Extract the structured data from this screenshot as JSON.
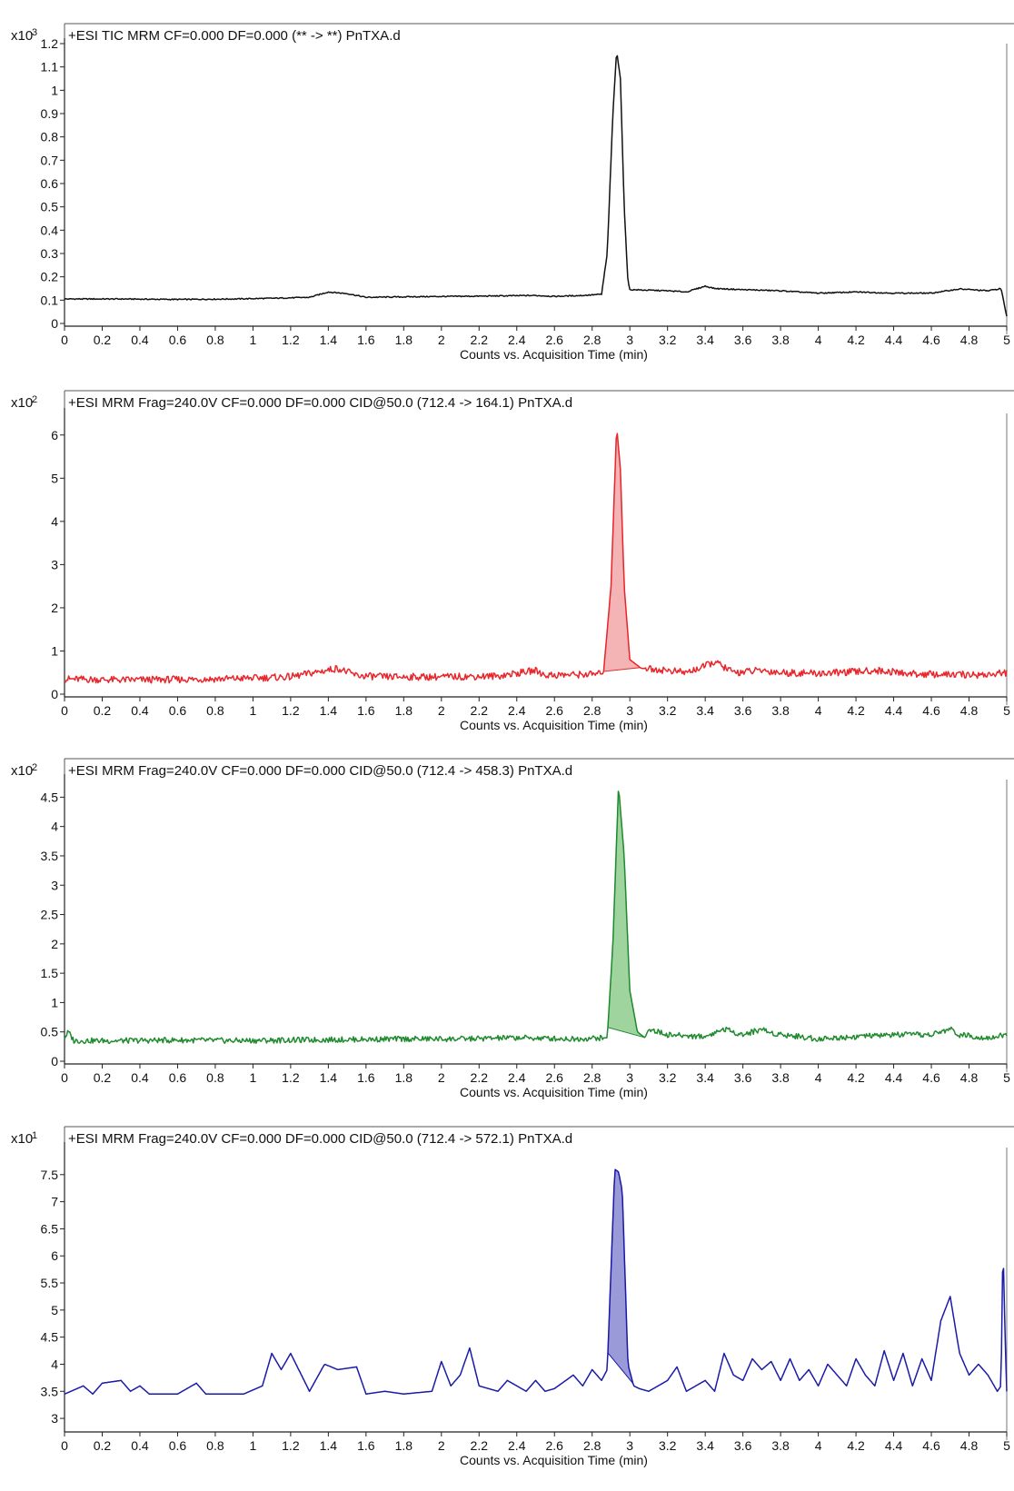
{
  "chart_data": [
    {
      "type": "line",
      "multiplier_label": "x10",
      "multiplier_exp": "3",
      "title": "+ESI TIC MRM CF=0.000 DF=0.000 (** -> **) PnTXA.d",
      "xlabel": "Counts vs. Acquisition Time (min)",
      "xlim": [
        0,
        5
      ],
      "ylim": [
        0,
        1.2
      ],
      "xticks": [
        "0",
        "0.2",
        "0.4",
        "0.6",
        "0.8",
        "1",
        "1.2",
        "1.4",
        "1.6",
        "1.8",
        "2",
        "2.2",
        "2.4",
        "2.6",
        "2.8",
        "3",
        "3.2",
        "3.4",
        "3.6",
        "3.8",
        "4",
        "4.2",
        "4.4",
        "4.6",
        "4.8",
        "5"
      ],
      "yticks": [
        "0",
        "0.1",
        "0.2",
        "0.3",
        "0.4",
        "0.5",
        "0.6",
        "0.7",
        "0.8",
        "0.9",
        "1",
        "1.1",
        "1.2"
      ],
      "color": "#111111",
      "fill": false,
      "series": [
        {
          "x": [
            0,
            0.3,
            0.6,
            0.9,
            1.1,
            1.3,
            1.4,
            1.5,
            1.6,
            1.9,
            2.2,
            2.5,
            2.6,
            2.75,
            2.85,
            2.88,
            2.91,
            2.93,
            2.95,
            2.97,
            2.99,
            3.0,
            3.2,
            3.3,
            3.4,
            3.45,
            3.6,
            3.8,
            4.0,
            4.2,
            4.4,
            4.6,
            4.75,
            4.9,
            4.97,
            5.0
          ],
          "y": [
            0.105,
            0.105,
            0.103,
            0.105,
            0.108,
            0.112,
            0.135,
            0.128,
            0.112,
            0.115,
            0.117,
            0.12,
            0.116,
            0.12,
            0.125,
            0.3,
            0.9,
            1.17,
            1.05,
            0.5,
            0.18,
            0.145,
            0.14,
            0.135,
            0.16,
            0.15,
            0.145,
            0.14,
            0.13,
            0.135,
            0.13,
            0.13,
            0.148,
            0.14,
            0.15,
            0.03
          ]
        }
      ]
    },
    {
      "type": "area",
      "multiplier_label": "x10",
      "multiplier_exp": "2",
      "title": "+ESI MRM Frag=240.0V CF=0.000 DF=0.000 CID@50.0 (712.4 -> 164.1) PnTXA.d",
      "xlabel": "Counts vs. Acquisition Time (min)",
      "xlim": [
        0,
        5
      ],
      "ylim": [
        0,
        6.5
      ],
      "xticks": [
        "0",
        "0.2",
        "0.4",
        "0.6",
        "0.8",
        "1",
        "1.2",
        "1.4",
        "1.6",
        "1.8",
        "2",
        "2.2",
        "2.4",
        "2.6",
        "2.8",
        "3",
        "3.2",
        "3.4",
        "3.6",
        "3.8",
        "4",
        "4.2",
        "4.4",
        "4.6",
        "4.8",
        "5"
      ],
      "yticks": [
        "0",
        "1",
        "2",
        "3",
        "4",
        "5",
        "6"
      ],
      "color": "#e8262b",
      "fill": true,
      "fill_color": "#f4b3b5",
      "fill_range": [
        2.86,
        3.06
      ],
      "series": [
        {
          "x": [
            0,
            0.3,
            0.6,
            0.9,
            1.2,
            1.35,
            1.45,
            1.55,
            1.7,
            2.0,
            2.3,
            2.5,
            2.55,
            2.7,
            2.86,
            2.9,
            2.93,
            2.95,
            2.97,
            3.0,
            3.06,
            3.2,
            3.3,
            3.4,
            3.45,
            3.55,
            3.7,
            3.8,
            4.0,
            4.2,
            4.3,
            4.5,
            4.7,
            4.9,
            5.0
          ],
          "y": [
            0.35,
            0.33,
            0.34,
            0.36,
            0.4,
            0.52,
            0.6,
            0.43,
            0.4,
            0.4,
            0.42,
            0.55,
            0.44,
            0.45,
            0.47,
            2.5,
            6.2,
            5.2,
            2.5,
            0.8,
            0.6,
            0.55,
            0.5,
            0.65,
            0.75,
            0.5,
            0.55,
            0.5,
            0.48,
            0.52,
            0.55,
            0.47,
            0.45,
            0.45,
            0.5
          ]
        }
      ]
    },
    {
      "type": "area",
      "multiplier_label": "x10",
      "multiplier_exp": "2",
      "title": "+ESI MRM Frag=240.0V CF=0.000 DF=0.000 CID@50.0 (712.4 -> 458.3) PnTXA.d",
      "xlabel": "Counts vs. Acquisition Time (min)",
      "xlim": [
        0,
        5
      ],
      "ylim": [
        0,
        4.8
      ],
      "xticks": [
        "0",
        "0.2",
        "0.4",
        "0.6",
        "0.8",
        "1",
        "1.2",
        "1.4",
        "1.6",
        "1.8",
        "2",
        "2.2",
        "2.4",
        "2.6",
        "2.8",
        "3",
        "3.2",
        "3.4",
        "3.6",
        "3.8",
        "4",
        "4.2",
        "4.4",
        "4.6",
        "4.8",
        "5"
      ],
      "yticks": [
        "0",
        "0.5",
        "1",
        "1.5",
        "2",
        "2.5",
        "3",
        "3.5",
        "4",
        "4.5"
      ],
      "color": "#1f8a2e",
      "fill": true,
      "fill_color": "#9fd49f",
      "fill_range": [
        2.88,
        3.08
      ],
      "series": [
        {
          "x": [
            0,
            0.02,
            0.05,
            0.3,
            0.6,
            0.9,
            1.2,
            1.5,
            1.8,
            2.1,
            2.4,
            2.7,
            2.88,
            2.91,
            2.94,
            2.97,
            3.0,
            3.04,
            3.08,
            3.1,
            3.2,
            3.4,
            3.5,
            3.55,
            3.6,
            3.7,
            3.75,
            3.9,
            4.0,
            4.2,
            4.4,
            4.6,
            4.7,
            4.75,
            4.9,
            5.0
          ],
          "y": [
            0.4,
            0.5,
            0.35,
            0.35,
            0.36,
            0.35,
            0.36,
            0.37,
            0.38,
            0.38,
            0.4,
            0.38,
            0.4,
            2.0,
            4.7,
            3.5,
            1.2,
            0.5,
            0.4,
            0.55,
            0.45,
            0.42,
            0.55,
            0.5,
            0.45,
            0.55,
            0.48,
            0.42,
            0.38,
            0.42,
            0.45,
            0.45,
            0.55,
            0.45,
            0.4,
            0.45
          ]
        }
      ]
    },
    {
      "type": "area",
      "multiplier_label": "x10",
      "multiplier_exp": "1",
      "title": "+ESI MRM Frag=240.0V CF=0.000 DF=0.000 CID@50.0 (712.4 -> 572.1) PnTXA.d",
      "xlabel": "Counts vs. Acquisition Time (min)",
      "xlim": [
        0,
        5
      ],
      "ylim": [
        2.8,
        8.0
      ],
      "xticks": [
        "0",
        "0.2",
        "0.4",
        "0.6",
        "0.8",
        "1",
        "1.2",
        "1.4",
        "1.6",
        "1.8",
        "2",
        "2.2",
        "2.4",
        "2.6",
        "2.8",
        "3",
        "3.2",
        "3.4",
        "3.6",
        "3.8",
        "4",
        "4.2",
        "4.4",
        "4.6",
        "4.8",
        "5"
      ],
      "yticks": [
        "3",
        "3.5",
        "4",
        "4.5",
        "5",
        "5.5",
        "6",
        "6.5",
        "7",
        "7.5"
      ],
      "color": "#1a1aa8",
      "fill": true,
      "fill_color": "#9a9ad8",
      "fill_range": [
        2.88,
        3.02
      ],
      "series": [
        {
          "x": [
            0,
            0.1,
            0.15,
            0.2,
            0.3,
            0.35,
            0.4,
            0.45,
            0.5,
            0.6,
            0.7,
            0.75,
            0.8,
            0.95,
            1.05,
            1.1,
            1.15,
            1.2,
            1.3,
            1.38,
            1.45,
            1.55,
            1.6,
            1.7,
            1.8,
            1.95,
            2.0,
            2.05,
            2.1,
            2.15,
            2.2,
            2.3,
            2.35,
            2.45,
            2.5,
            2.55,
            2.6,
            2.7,
            2.75,
            2.8,
            2.85,
            2.88,
            2.92,
            2.94,
            2.96,
            2.99,
            3.02,
            3.05,
            3.1,
            3.2,
            3.25,
            3.3,
            3.4,
            3.45,
            3.5,
            3.55,
            3.6,
            3.65,
            3.7,
            3.75,
            3.8,
            3.85,
            3.9,
            3.95,
            4.0,
            4.05,
            4.1,
            4.15,
            4.2,
            4.25,
            4.3,
            4.35,
            4.4,
            4.45,
            4.5,
            4.55,
            4.6,
            4.65,
            4.7,
            4.75,
            4.8,
            4.85,
            4.9,
            4.95,
            4.97,
            4.98,
            4.99,
            5.0
          ],
          "y": [
            3.45,
            3.6,
            3.45,
            3.65,
            3.7,
            3.5,
            3.6,
            3.45,
            3.45,
            3.45,
            3.65,
            3.45,
            3.45,
            3.45,
            3.6,
            4.2,
            3.9,
            4.2,
            3.5,
            4.0,
            3.9,
            3.95,
            3.45,
            3.5,
            3.45,
            3.5,
            4.05,
            3.6,
            3.8,
            4.3,
            3.6,
            3.5,
            3.7,
            3.5,
            3.7,
            3.5,
            3.55,
            3.8,
            3.6,
            3.9,
            3.7,
            3.9,
            7.6,
            7.55,
            7.2,
            4.0,
            3.6,
            3.55,
            3.5,
            3.7,
            3.95,
            3.5,
            3.7,
            3.5,
            4.2,
            3.8,
            3.7,
            4.1,
            3.9,
            4.05,
            3.7,
            4.1,
            3.7,
            3.9,
            3.6,
            4.0,
            3.8,
            3.6,
            4.1,
            3.8,
            3.6,
            4.25,
            3.7,
            4.2,
            3.6,
            4.1,
            3.7,
            4.8,
            5.25,
            4.2,
            3.8,
            4.0,
            3.8,
            3.5,
            3.6,
            6.3,
            4.7,
            3.5
          ]
        }
      ]
    }
  ]
}
